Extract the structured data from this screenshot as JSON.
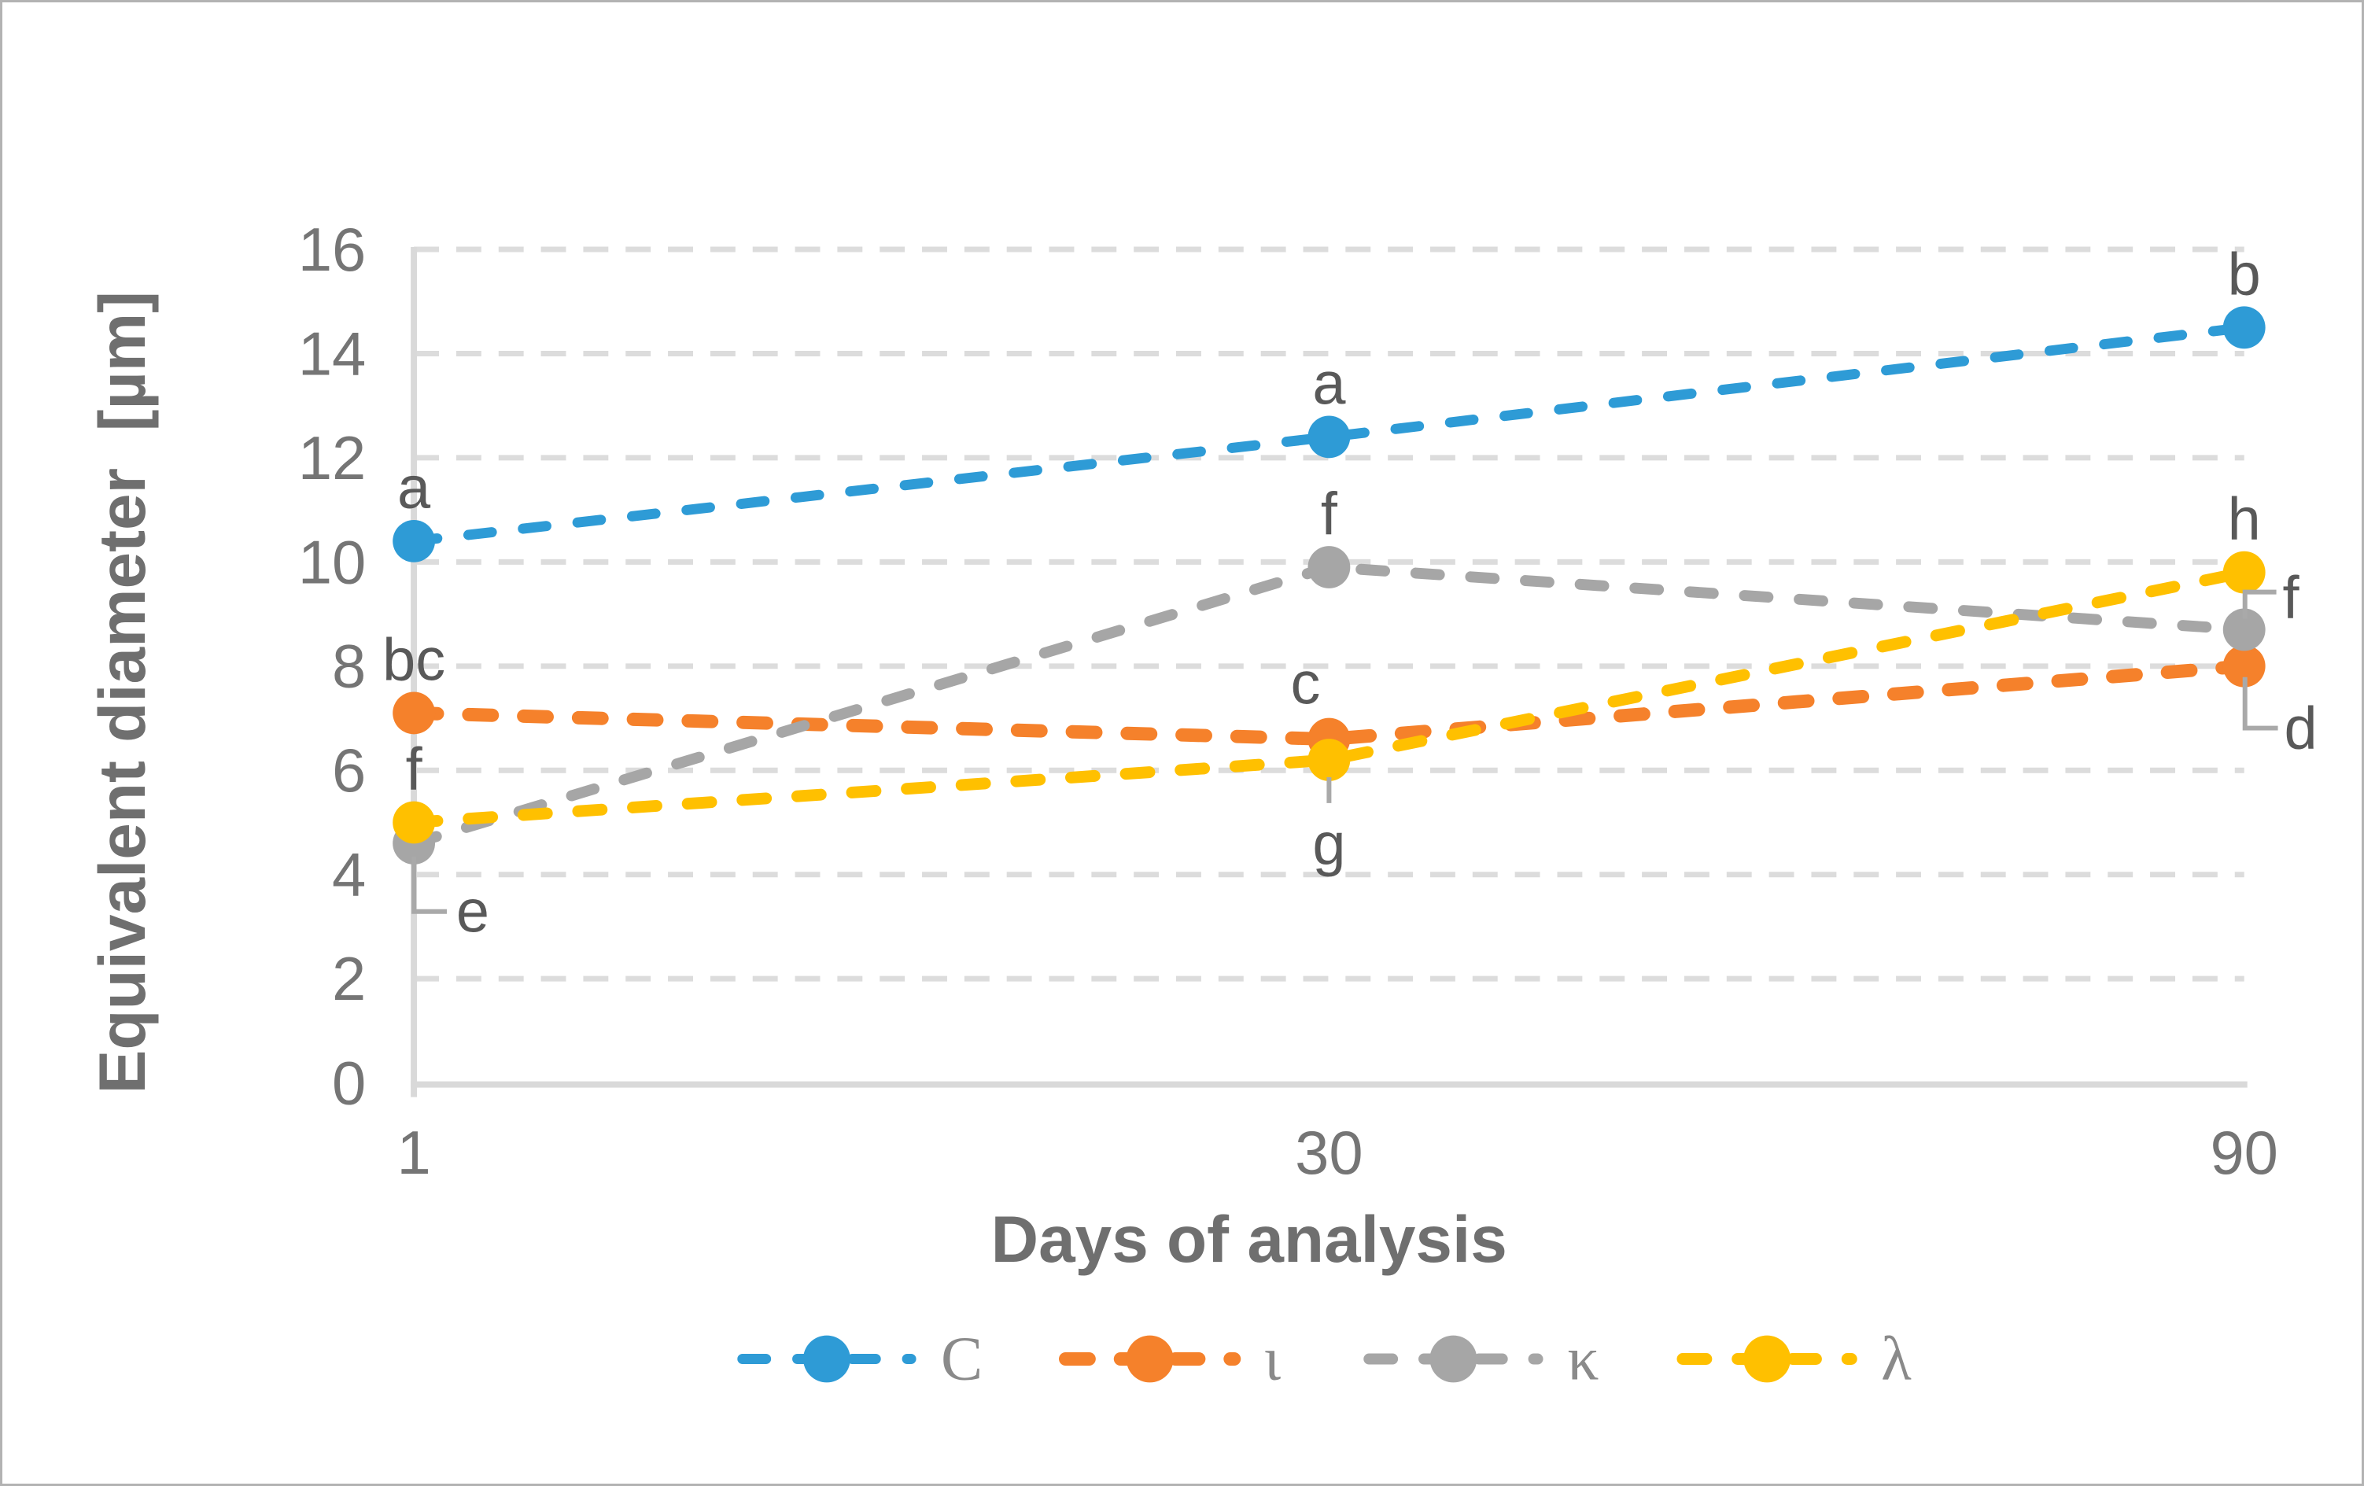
{
  "chart_data": {
    "type": "line",
    "title": "",
    "xlabel": "Days of analysis",
    "ylabel": "Equivalent diameter  [µm]",
    "x_categories": [
      "1",
      "30",
      "90"
    ],
    "yticks": [
      "0",
      "2",
      "4",
      "6",
      "8",
      "10",
      "12",
      "14",
      "16"
    ],
    "ylim": [
      0,
      16
    ],
    "ytick_step": 2,
    "grid": "horizontal-dashed",
    "legend_position": "bottom",
    "line_style": "dashed-with-circle-markers",
    "series": [
      {
        "name": "C",
        "color": "#2e9bd6",
        "values": [
          10.4,
          12.4,
          14.5
        ],
        "point_labels": [
          {
            "text": "a",
            "placement": "above"
          },
          {
            "text": "a",
            "placement": "above"
          },
          {
            "text": "b",
            "placement": "above"
          }
        ]
      },
      {
        "name": "ι",
        "color": "#f5812b",
        "values": [
          7.1,
          6.6,
          8.0
        ],
        "point_labels": [
          {
            "text": "bc",
            "placement": "above"
          },
          {
            "text": "c",
            "placement": "above-left"
          },
          {
            "text": "d",
            "placement": "leader-right-down"
          }
        ]
      },
      {
        "name": "κ",
        "color": "#a6a6a6",
        "values": [
          4.6,
          9.9,
          8.7
        ],
        "point_labels": [
          {
            "text": "e",
            "placement": "leader-down-right"
          },
          {
            "text": "f",
            "placement": "above"
          },
          {
            "text": "f",
            "placement": "leader-up-right"
          }
        ]
      },
      {
        "name": "λ",
        "color": "#ffc000",
        "values": [
          5.0,
          6.2,
          9.8
        ],
        "point_labels": [
          {
            "text": "f",
            "placement": "above"
          },
          {
            "text": "g",
            "placement": "leader-down"
          },
          {
            "text": "h",
            "placement": "above"
          }
        ]
      }
    ]
  },
  "styles": {
    "grid_color": "#dcdcdc",
    "axis_color": "#d9d9d9",
    "tick_color": "#757575",
    "point_label_color": "#595959",
    "axis_title_color": "#6f6f6f",
    "legend_text_color": "#8a8a8a",
    "leader_color": "#a9a9a9",
    "frame_color": "#b3b3b3",
    "background": "#ffffff"
  }
}
